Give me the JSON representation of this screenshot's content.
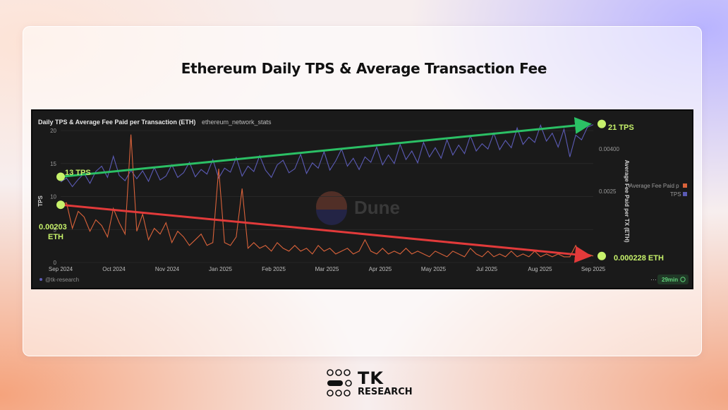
{
  "page": {
    "title": "Ethereum Daily TPS & Average Transaction Fee"
  },
  "dashboard": {
    "title": "Daily TPS & Average Fee Paid per Transaction (ETH)",
    "query_name": "ethereum_network_stats",
    "author": "@tk-research",
    "refresh": "29min",
    "watermark": "Dune"
  },
  "annotations": {
    "tps_start": "13 TPS",
    "tps_end": "21 TPS",
    "fee_start_line1": "0.00203",
    "fee_start_line2": "ETH",
    "fee_end": "0.000228 ETH"
  },
  "brand": {
    "name": "TK",
    "subtitle": "RESEARCH"
  },
  "colors": {
    "tps": "#5b5bb5",
    "fee": "#d9623a",
    "trend_up": "#2bc065",
    "trend_down": "#e23a3a",
    "marker": "#c7f26b",
    "chart_bg": "#1a1a1a"
  },
  "chart_data": {
    "type": "line",
    "title": "Daily TPS & Average Fee Paid per Transaction (ETH)",
    "x_ticks": [
      "Sep 2024",
      "Oct 2024",
      "Nov 2024",
      "Jan 2025",
      "Feb 2025",
      "Mar 2025",
      "Apr 2025",
      "May 2025",
      "Jul 2025",
      "Aug 2025",
      "Sep 2025"
    ],
    "y_left": {
      "label": "TPS",
      "ticks": [
        0,
        5,
        10,
        15,
        20
      ],
      "range": [
        0,
        20
      ]
    },
    "y_right": {
      "label": "Average Fee Paid per TX (ETH)",
      "ticks_labels": [
        "0.00400",
        "0.0025"
      ],
      "ticks_values": [
        0.004,
        0.0025
      ],
      "range": [
        0,
        0.00464
      ]
    },
    "legend": {
      "placement": "right",
      "entries": [
        "Average Fee Paid p",
        "TPS"
      ]
    },
    "series": [
      {
        "name": "TPS",
        "axis": "left",
        "x": [
          0,
          4,
          8,
          12,
          16,
          20,
          24,
          28,
          32,
          36,
          40,
          44,
          48,
          52,
          56,
          60,
          64,
          68,
          72,
          76,
          80,
          84,
          88,
          92,
          96,
          100,
          104,
          108,
          112,
          116,
          120,
          124,
          128,
          132,
          136,
          140,
          144,
          148,
          152,
          156,
          160,
          164,
          168,
          172,
          176,
          180,
          184,
          188,
          192,
          196,
          200,
          204,
          208,
          212,
          216,
          220,
          224,
          228,
          232,
          236,
          240,
          244,
          248,
          252,
          256,
          260,
          264,
          268,
          272,
          276,
          280,
          284,
          288,
          292,
          296,
          300,
          304,
          308,
          312,
          316,
          320,
          324,
          328,
          332,
          336,
          340,
          344,
          348,
          352,
          356,
          360,
          364
        ],
        "values": [
          12.2,
          12.8,
          11.5,
          12.6,
          13.5,
          12.0,
          13.8,
          14.6,
          12.9,
          16.1,
          13.2,
          12.4,
          14.0,
          12.7,
          13.9,
          12.3,
          14.4,
          12.5,
          13.1,
          14.8,
          12.9,
          13.6,
          15.2,
          13.0,
          14.1,
          13.4,
          15.6,
          12.8,
          14.3,
          13.7,
          15.9,
          13.1,
          14.6,
          13.8,
          16.2,
          14.0,
          12.9,
          14.8,
          15.5,
          13.6,
          14.2,
          16.4,
          13.5,
          15.1,
          14.3,
          16.8,
          14.0,
          15.4,
          17.2,
          14.6,
          15.8,
          14.1,
          16.0,
          15.2,
          17.5,
          14.8,
          16.3,
          15.0,
          17.9,
          15.6,
          16.9,
          15.1,
          18.2,
          16.0,
          17.4,
          15.8,
          18.6,
          16.3,
          17.8,
          16.5,
          19.2,
          16.9,
          18.0,
          17.2,
          19.6,
          17.1,
          18.5,
          17.4,
          20.4,
          17.9,
          19.0,
          18.2,
          20.8,
          18.4,
          19.6,
          17.5,
          20.2,
          16.0,
          19.3,
          18.6,
          20.5,
          20.9
        ]
      },
      {
        "name": "Average Fee Paid p",
        "axis": "right",
        "x": [
          0,
          4,
          8,
          12,
          16,
          20,
          24,
          28,
          32,
          36,
          40,
          44,
          48,
          52,
          56,
          60,
          64,
          68,
          72,
          76,
          80,
          84,
          88,
          92,
          96,
          100,
          104,
          108,
          112,
          116,
          120,
          124,
          128,
          132,
          136,
          140,
          144,
          148,
          152,
          156,
          160,
          164,
          168,
          172,
          176,
          180,
          184,
          188,
          192,
          196,
          200,
          204,
          208,
          212,
          216,
          220,
          224,
          228,
          232,
          236,
          240,
          244,
          248,
          252,
          256,
          260,
          264,
          268,
          272,
          276,
          280,
          284,
          288,
          292,
          296,
          300,
          304,
          308,
          312,
          316,
          320,
          324,
          328,
          332,
          336,
          340,
          344,
          348,
          352,
          356,
          360,
          364
        ],
        "values": [
          0.00203,
          0.0021,
          0.0012,
          0.0018,
          0.0016,
          0.0011,
          0.0015,
          0.0013,
          0.0009,
          0.0019,
          0.0014,
          0.001,
          0.0045,
          0.0011,
          0.0017,
          0.0008,
          0.0012,
          0.001,
          0.0014,
          0.0007,
          0.0011,
          0.0009,
          0.0006,
          0.0008,
          0.001,
          0.0006,
          0.0007,
          0.0033,
          0.0007,
          0.0006,
          0.0009,
          0.0026,
          0.0005,
          0.0007,
          0.0005,
          0.0006,
          0.0004,
          0.0007,
          0.0005,
          0.0004,
          0.0006,
          0.0004,
          0.0005,
          0.0003,
          0.0006,
          0.0004,
          0.0005,
          0.0003,
          0.0004,
          0.0005,
          0.0003,
          0.0004,
          0.0008,
          0.0004,
          0.0003,
          0.0005,
          0.0003,
          0.0004,
          0.0003,
          0.0005,
          0.0003,
          0.0004,
          0.0003,
          0.0002,
          0.0004,
          0.0003,
          0.0002,
          0.0004,
          0.0003,
          0.0002,
          0.0005,
          0.0003,
          0.0002,
          0.0004,
          0.0002,
          0.0003,
          0.0002,
          0.0004,
          0.0002,
          0.0003,
          0.0002,
          0.0004,
          0.0002,
          0.0003,
          0.0002,
          0.0003,
          0.0002,
          0.0002,
          0.0006,
          0.0002,
          0.0003,
          0.000228
        ]
      }
    ],
    "trend_lines": [
      {
        "series": "TPS",
        "from": [
          0,
          13
        ],
        "to": [
          364,
          21
        ]
      },
      {
        "series": "Average Fee Paid p",
        "from": [
          0,
          0.00203
        ],
        "to": [
          364,
          0.000228
        ]
      }
    ]
  }
}
